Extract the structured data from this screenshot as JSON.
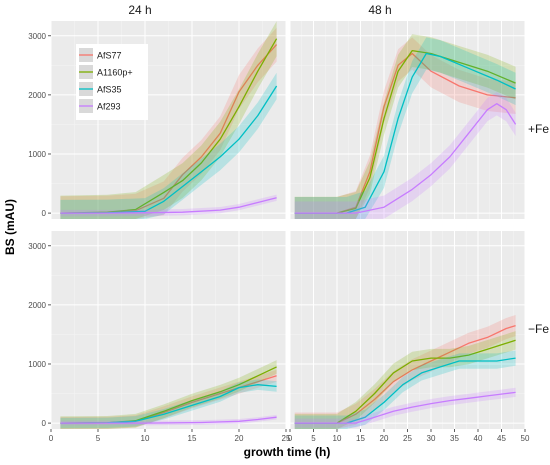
{
  "chart_data": {
    "type": "line",
    "xlabel": "growth time (h)",
    "ylabel": "BS (mAU)",
    "column_strips": [
      "24 h",
      "48 h"
    ],
    "row_strips": [
      "+Fe",
      "−Fe"
    ],
    "ylim": [
      -100,
      3250
    ],
    "yticks": [
      0,
      1000,
      2000,
      3000
    ],
    "xticks": [
      0,
      5,
      10,
      15,
      20,
      25,
      30,
      35,
      40,
      45,
      50
    ],
    "grid": true,
    "legend_position": "top-left",
    "colors": {
      "AfS77": "#F8766D",
      "A1160p+": "#7CAE00",
      "AfS35": "#00BFC4",
      "Af293": "#C77CFF"
    },
    "panels": [
      {
        "column": "24 h",
        "row": "+Fe",
        "xlim": [
          0,
          25
        ],
        "series": [
          {
            "name": "AfS77",
            "x": [
              1,
              6,
              9,
              12,
              14,
              16,
              18,
              20,
              22,
              24
            ],
            "y": [
              0,
              10,
              40,
              250,
              650,
              950,
              1350,
              2050,
              2500,
              2850
            ]
          },
          {
            "name": "A1160p+",
            "x": [
              1,
              6,
              9,
              12,
              14,
              16,
              18,
              20,
              22,
              24
            ],
            "y": [
              0,
              15,
              60,
              350,
              550,
              850,
              1250,
              1800,
              2400,
              2950
            ]
          },
          {
            "name": "AfS35",
            "x": [
              1,
              6,
              10,
              12,
              14,
              16,
              18,
              20,
              22,
              24
            ],
            "y": [
              0,
              5,
              30,
              200,
              450,
              700,
              950,
              1250,
              1650,
              2150
            ]
          },
          {
            "name": "Af293",
            "x": [
              1,
              6,
              10,
              14,
              18,
              20,
              22,
              24
            ],
            "y": [
              0,
              0,
              5,
              15,
              50,
              100,
              180,
              260
            ]
          }
        ]
      },
      {
        "column": "48 h",
        "row": "+Fe",
        "xlim": [
          0,
          50
        ],
        "series": [
          {
            "name": "AfS77",
            "x": [
              1,
              10,
              14,
              17,
              20,
              23,
              26,
              30,
              36,
              42,
              48
            ],
            "y": [
              0,
              0,
              100,
              700,
              1800,
              2500,
              2700,
              2400,
              2150,
              2000,
              1950
            ]
          },
          {
            "name": "A1160p+",
            "x": [
              1,
              10,
              14,
              17,
              20,
              23,
              26,
              30,
              36,
              42,
              48
            ],
            "y": [
              0,
              0,
              80,
              600,
              1600,
              2400,
              2750,
              2700,
              2550,
              2400,
              2200
            ]
          },
          {
            "name": "AfS35",
            "x": [
              1,
              12,
              16,
              20,
              23,
              26,
              29,
              32,
              38,
              44,
              48
            ],
            "y": [
              0,
              0,
              100,
              700,
              1600,
              2300,
              2700,
              2650,
              2450,
              2250,
              2100
            ]
          },
          {
            "name": "Af293",
            "x": [
              1,
              14,
              20,
              26,
              30,
              34,
              38,
              42,
              44,
              46,
              48
            ],
            "y": [
              0,
              0,
              100,
              400,
              650,
              950,
              1350,
              1750,
              1850,
              1750,
              1500
            ]
          }
        ]
      },
      {
        "column": "24 h",
        "row": "−Fe",
        "xlim": [
          0,
          25
        ],
        "series": [
          {
            "name": "AfS77",
            "x": [
              1,
              6,
              9,
              12,
              15,
              18,
              20,
              22,
              24
            ],
            "y": [
              0,
              5,
              30,
              180,
              350,
              500,
              600,
              700,
              800
            ]
          },
          {
            "name": "A1160p+",
            "x": [
              1,
              6,
              9,
              12,
              15,
              18,
              20,
              22,
              24
            ],
            "y": [
              0,
              5,
              40,
              200,
              380,
              530,
              650,
              800,
              950
            ]
          },
          {
            "name": "AfS35",
            "x": [
              1,
              6,
              9,
              12,
              15,
              18,
              20,
              22,
              24
            ],
            "y": [
              0,
              5,
              30,
              150,
              300,
              450,
              600,
              650,
              620
            ]
          },
          {
            "name": "Af293",
            "x": [
              1,
              10,
              16,
              20,
              22,
              24
            ],
            "y": [
              0,
              0,
              10,
              30,
              60,
              100
            ]
          }
        ]
      },
      {
        "column": "48 h",
        "row": "−Fe",
        "xlim": [
          0,
          50
        ],
        "series": [
          {
            "name": "AfS77",
            "x": [
              1,
              10,
              14,
              18,
              22,
              26,
              30,
              34,
              38,
              42,
              46,
              48
            ],
            "y": [
              0,
              0,
              150,
              400,
              700,
              900,
              1050,
              1200,
              1350,
              1450,
              1600,
              1650
            ]
          },
          {
            "name": "A1160p+",
            "x": [
              1,
              10,
              14,
              18,
              22,
              26,
              30,
              34,
              38,
              42,
              46,
              48
            ],
            "y": [
              0,
              0,
              200,
              500,
              850,
              1050,
              1100,
              1100,
              1150,
              1250,
              1350,
              1400
            ]
          },
          {
            "name": "AfS35",
            "x": [
              1,
              12,
              16,
              20,
              24,
              28,
              32,
              36,
              40,
              44,
              48
            ],
            "y": [
              0,
              0,
              100,
              350,
              650,
              850,
              950,
              1050,
              1050,
              1050,
              1100
            ]
          },
          {
            "name": "Af293",
            "x": [
              1,
              14,
              18,
              22,
              26,
              30,
              34,
              38,
              42,
              46,
              48
            ],
            "y": [
              0,
              0,
              100,
              200,
              270,
              330,
              380,
              420,
              460,
              500,
              520
            ]
          }
        ]
      }
    ]
  }
}
